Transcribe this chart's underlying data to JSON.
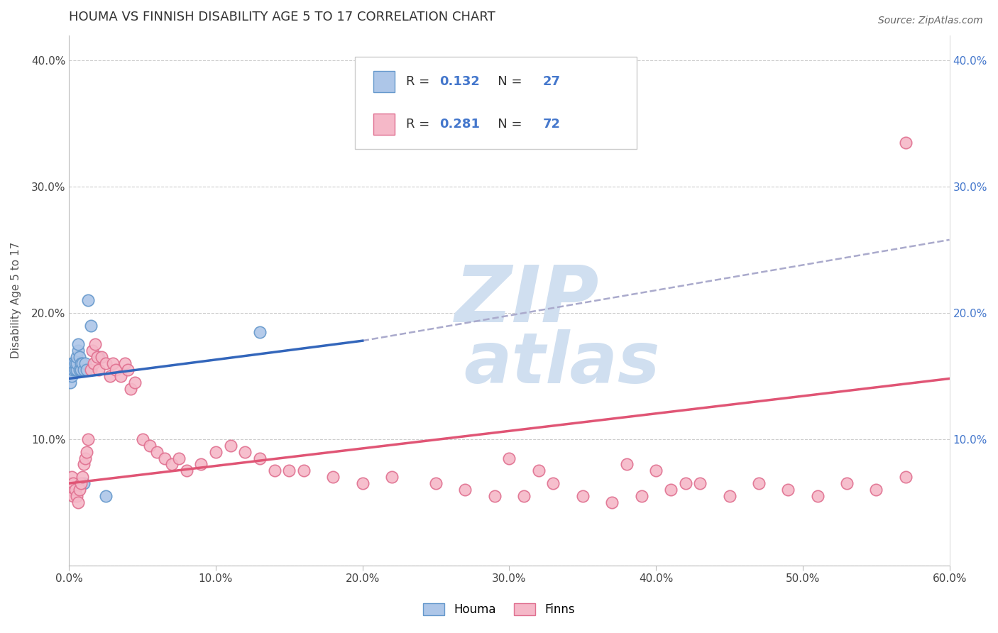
{
  "title": "HOUMA VS FINNISH DISABILITY AGE 5 TO 17 CORRELATION CHART",
  "source": "Source: ZipAtlas.com",
  "ylabel": "Disability Age 5 to 17",
  "xlim": [
    0.0,
    0.6
  ],
  "ylim": [
    0.0,
    0.42
  ],
  "houma_color": "#adc6e8",
  "houma_edge_color": "#6699cc",
  "finns_color": "#f5b8c8",
  "finns_edge_color": "#e07090",
  "houma_line_color": "#3366bb",
  "finns_line_color": "#e05575",
  "dash_line_color": "#aaaacc",
  "legend_text_color": "#333333",
  "legend_num_color": "#4477cc",
  "watermark_color": "#d0dff0",
  "houma_R": 0.132,
  "houma_N": 27,
  "finns_R": 0.281,
  "finns_N": 72,
  "houma_x": [
    0.001,
    0.001,
    0.002,
    0.002,
    0.003,
    0.003,
    0.004,
    0.004,
    0.005,
    0.005,
    0.005,
    0.006,
    0.006,
    0.007,
    0.007,
    0.008,
    0.008,
    0.009,
    0.01,
    0.01,
    0.011,
    0.012,
    0.013,
    0.015,
    0.02,
    0.025,
    0.13
  ],
  "houma_y": [
    0.155,
    0.145,
    0.16,
    0.15,
    0.155,
    0.16,
    0.155,
    0.16,
    0.155,
    0.16,
    0.165,
    0.17,
    0.175,
    0.155,
    0.165,
    0.16,
    0.155,
    0.16,
    0.155,
    0.065,
    0.16,
    0.155,
    0.21,
    0.19,
    0.165,
    0.055,
    0.185
  ],
  "finns_x": [
    0.001,
    0.001,
    0.002,
    0.003,
    0.003,
    0.004,
    0.005,
    0.006,
    0.007,
    0.008,
    0.009,
    0.01,
    0.011,
    0.012,
    0.013,
    0.015,
    0.016,
    0.017,
    0.018,
    0.019,
    0.02,
    0.022,
    0.025,
    0.028,
    0.03,
    0.032,
    0.035,
    0.038,
    0.04,
    0.042,
    0.045,
    0.05,
    0.055,
    0.06,
    0.065,
    0.07,
    0.075,
    0.08,
    0.09,
    0.1,
    0.11,
    0.12,
    0.13,
    0.14,
    0.15,
    0.16,
    0.18,
    0.2,
    0.22,
    0.25,
    0.27,
    0.29,
    0.31,
    0.33,
    0.35,
    0.37,
    0.39,
    0.41,
    0.43,
    0.45,
    0.47,
    0.49,
    0.51,
    0.53,
    0.55,
    0.57,
    0.3,
    0.32,
    0.38,
    0.4,
    0.42,
    0.57
  ],
  "finns_y": [
    0.065,
    0.06,
    0.07,
    0.065,
    0.055,
    0.06,
    0.055,
    0.05,
    0.06,
    0.065,
    0.07,
    0.08,
    0.085,
    0.09,
    0.1,
    0.155,
    0.17,
    0.16,
    0.175,
    0.165,
    0.155,
    0.165,
    0.16,
    0.15,
    0.16,
    0.155,
    0.15,
    0.16,
    0.155,
    0.14,
    0.145,
    0.1,
    0.095,
    0.09,
    0.085,
    0.08,
    0.085,
    0.075,
    0.08,
    0.09,
    0.095,
    0.09,
    0.085,
    0.075,
    0.075,
    0.075,
    0.07,
    0.065,
    0.07,
    0.065,
    0.06,
    0.055,
    0.055,
    0.065,
    0.055,
    0.05,
    0.055,
    0.06,
    0.065,
    0.055,
    0.065,
    0.06,
    0.055,
    0.065,
    0.06,
    0.07,
    0.085,
    0.075,
    0.08,
    0.075,
    0.065,
    0.335
  ]
}
